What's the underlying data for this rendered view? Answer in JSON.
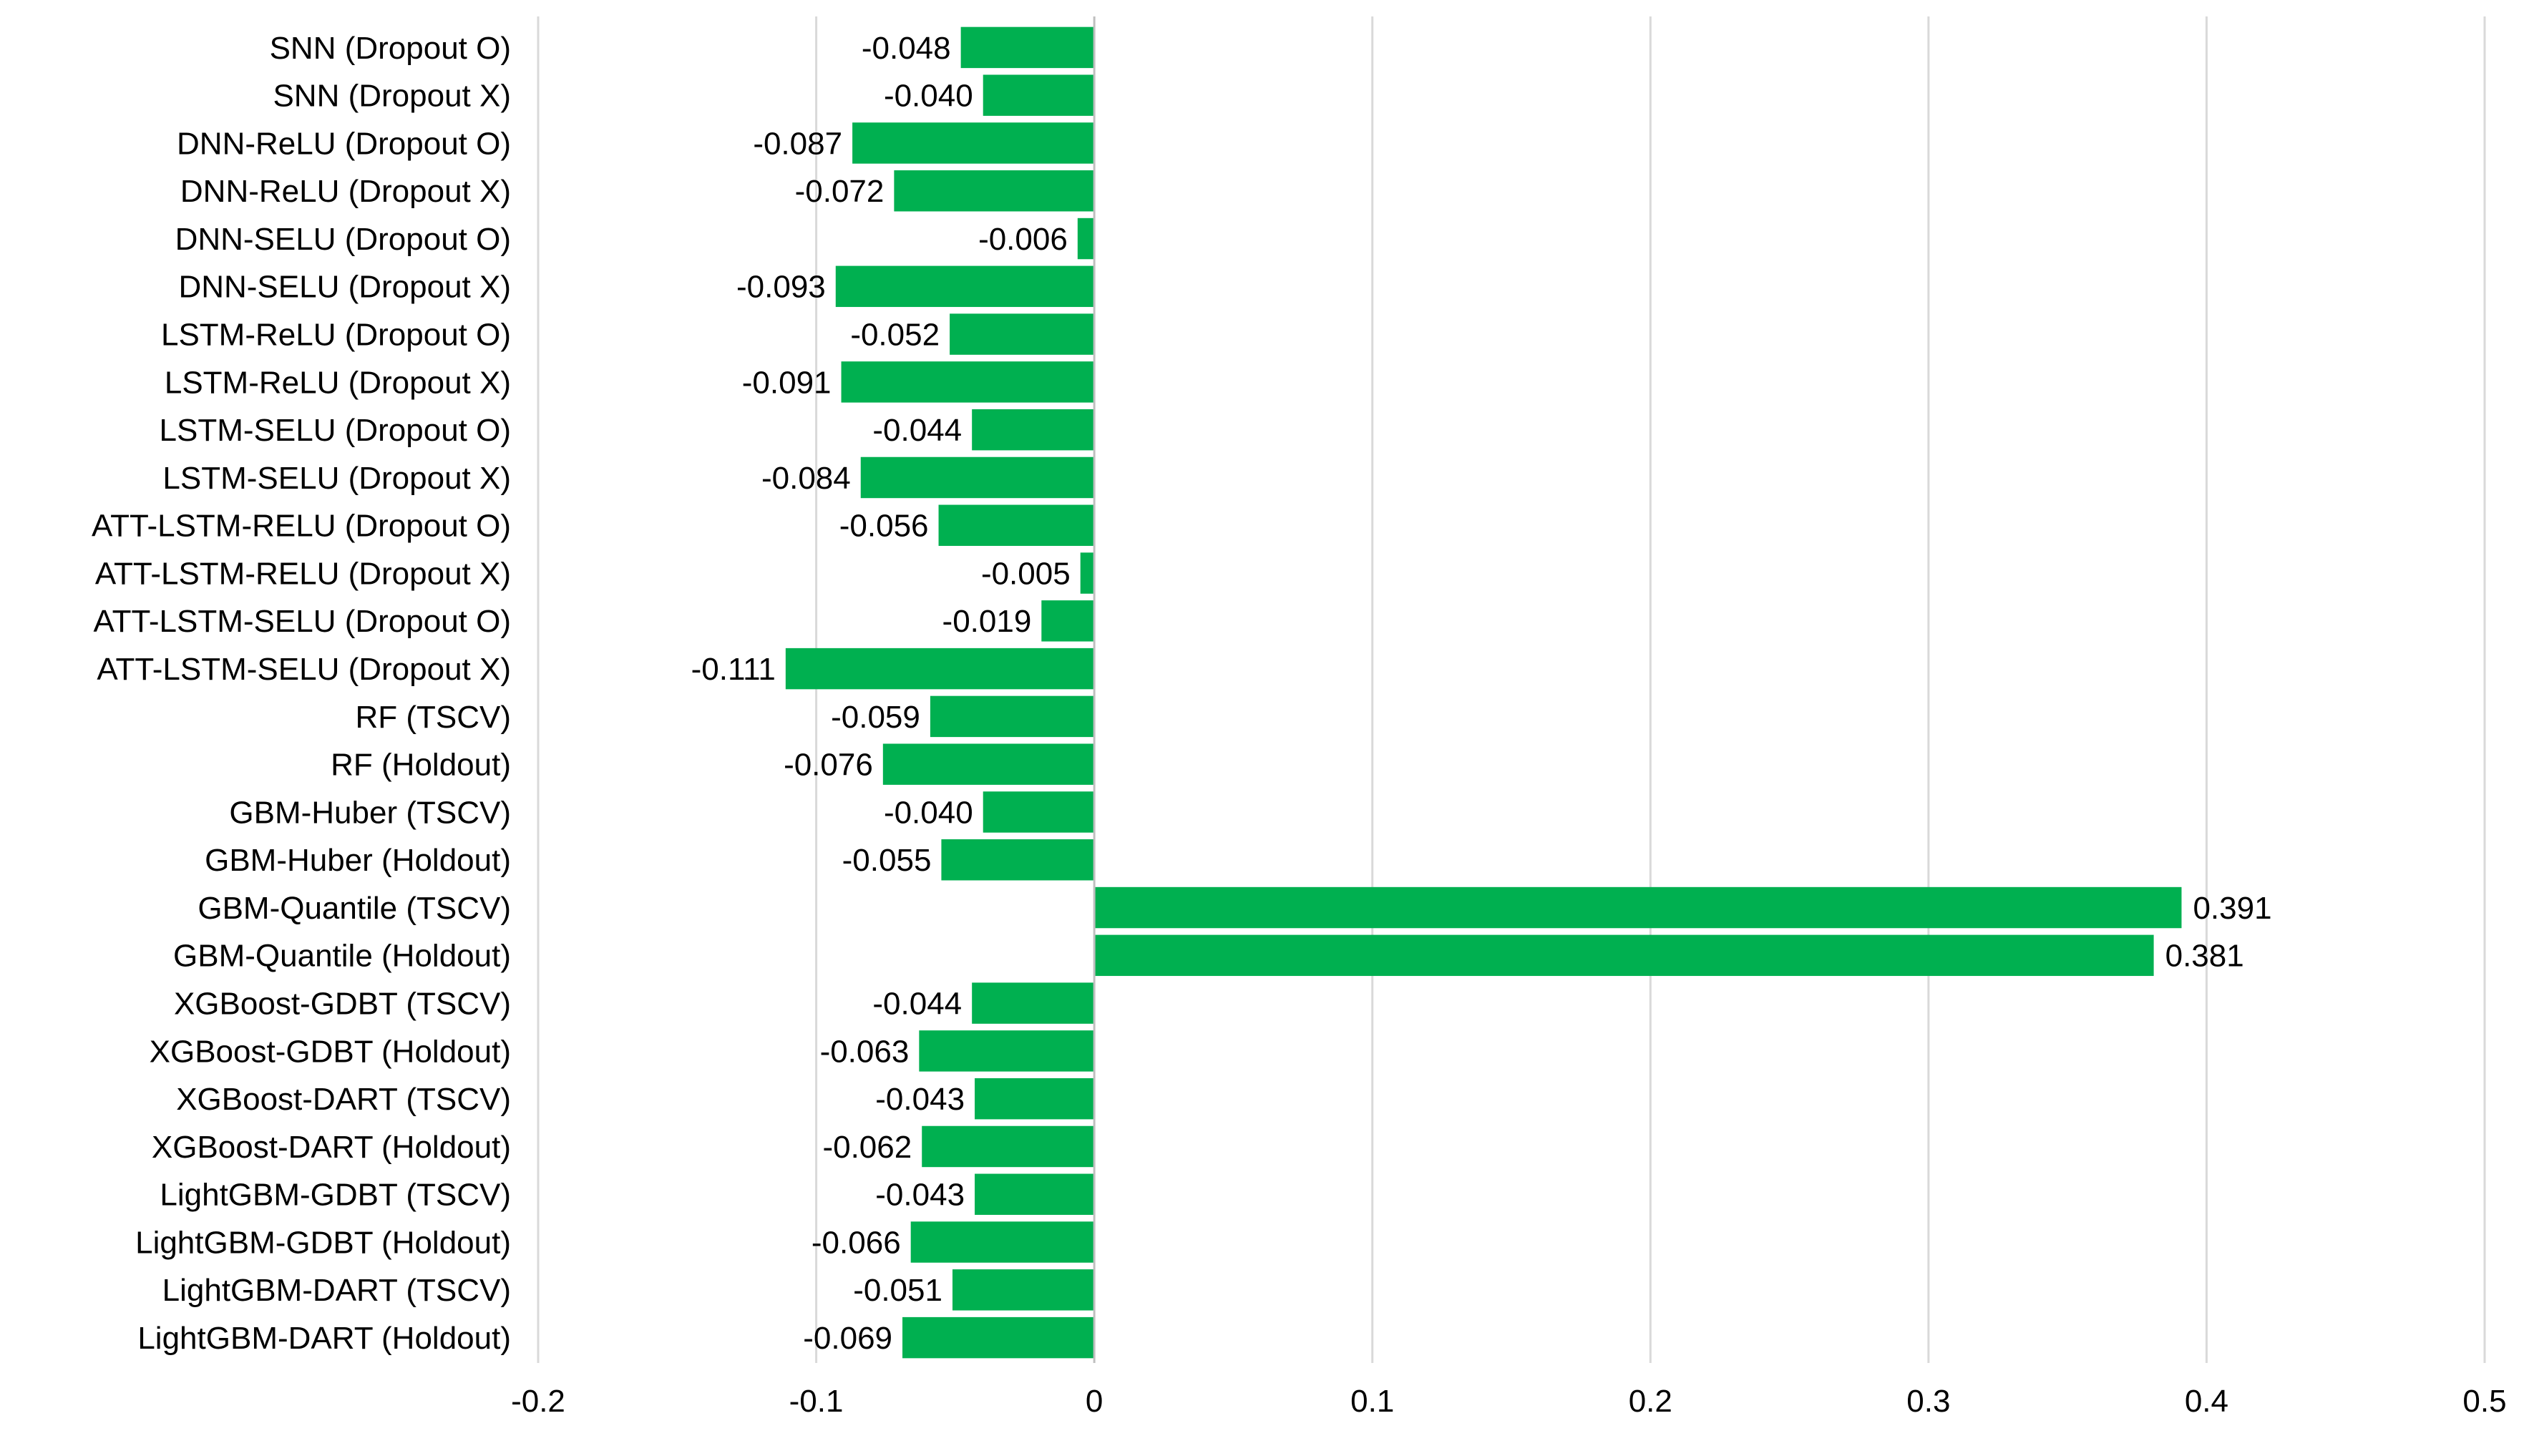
{
  "chart_data": {
    "type": "bar",
    "orientation": "horizontal",
    "title": "",
    "xlabel": "",
    "ylabel": "",
    "xlim": [
      -0.2,
      0.5
    ],
    "x_ticks": [
      -0.2,
      -0.1,
      0,
      0.1,
      0.2,
      0.3,
      0.4,
      0.5
    ],
    "x_tick_labels": [
      "-0.2",
      "-0.1",
      "0",
      "0.1",
      "0.2",
      "0.3",
      "0.4",
      "0.5"
    ],
    "grid": "vertical",
    "bar_color": "#00b050",
    "grid_color": "#d9d9d9",
    "categories": [
      "SNN (Dropout O)",
      "SNN (Dropout X)",
      "DNN-ReLU (Dropout O)",
      "DNN-ReLU (Dropout X)",
      "DNN-SELU (Dropout O)",
      "DNN-SELU (Dropout X)",
      "LSTM-ReLU (Dropout O)",
      "LSTM-ReLU (Dropout X)",
      "LSTM-SELU (Dropout O)",
      "LSTM-SELU (Dropout X)",
      "ATT-LSTM-RELU (Dropout O)",
      "ATT-LSTM-RELU (Dropout X)",
      "ATT-LSTM-SELU (Dropout O)",
      "ATT-LSTM-SELU (Dropout X)",
      "RF (TSCV)",
      "RF (Holdout)",
      "GBM-Huber (TSCV)",
      "GBM-Huber (Holdout)",
      "GBM-Quantile (TSCV)",
      "GBM-Quantile (Holdout)",
      "XGBoost-GDBT (TSCV)",
      "XGBoost-GDBT (Holdout)",
      "XGBoost-DART (TSCV)",
      "XGBoost-DART (Holdout)",
      "LightGBM-GDBT (TSCV)",
      "LightGBM-GDBT (Holdout)",
      "LightGBM-DART (TSCV)",
      "LightGBM-DART (Holdout)"
    ],
    "values": [
      -0.048,
      -0.04,
      -0.087,
      -0.072,
      -0.006,
      -0.093,
      -0.052,
      -0.091,
      -0.044,
      -0.084,
      -0.056,
      -0.005,
      -0.019,
      -0.111,
      -0.059,
      -0.076,
      -0.04,
      -0.055,
      0.391,
      0.381,
      -0.044,
      -0.063,
      -0.043,
      -0.062,
      -0.043,
      -0.066,
      -0.051,
      -0.069
    ],
    "data_labels": [
      "-0.048",
      "-0.040",
      "-0.087",
      "-0.072",
      "-0.006",
      "-0.093",
      "-0.052",
      "-0.091",
      "-0.044",
      "-0.084",
      "-0.056",
      "-0.005",
      "-0.019",
      "-0.111",
      "-0.059",
      "-0.076",
      "-0.040",
      "-0.055",
      "0.391",
      "0.381",
      "-0.044",
      "-0.063",
      "-0.043",
      "-0.062",
      "-0.043",
      "-0.066",
      "-0.051",
      "-0.069"
    ]
  }
}
